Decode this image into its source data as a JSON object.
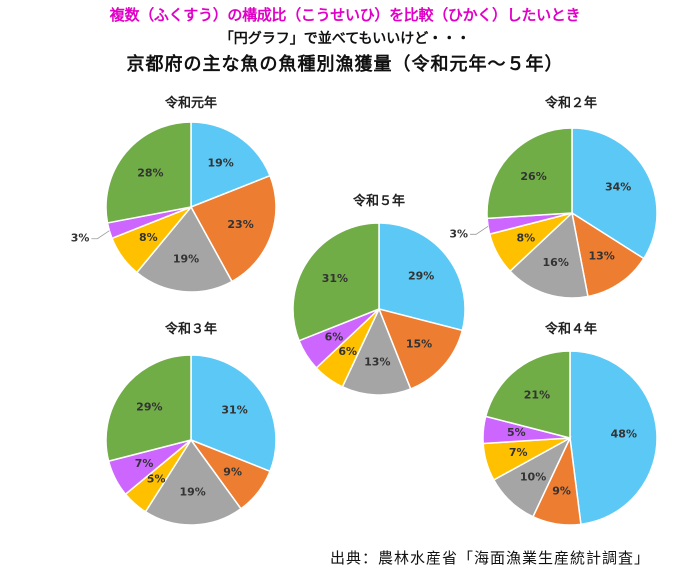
{
  "headline": "複数（ふくすう）の構成比（こうせいひ）を比較（ひかく）したいとき",
  "subheadline": "「円グラフ」で並べてもいいけど・・・",
  "title": "京都府の主な魚の魚種別漁獲量（令和元年～５年）",
  "source": "出典：農林水産省「海面漁業生産統計調査」",
  "colors": [
    "#5bc8f5",
    "#ed7d31",
    "#a5a5a5",
    "#ffc000",
    "#cc66ff",
    "#70ad47"
  ],
  "chart_data": [
    {
      "type": "pie",
      "title": "令和元年",
      "labels": [
        "19%",
        "23%",
        "19%",
        "8%",
        "3%",
        "28%"
      ],
      "values": [
        19,
        23,
        19,
        8,
        3,
        28
      ]
    },
    {
      "type": "pie",
      "title": "令和２年",
      "labels": [
        "34%",
        "13%",
        "16%",
        "8%",
        "3%",
        "26%"
      ],
      "values": [
        34,
        13,
        16,
        8,
        3,
        26
      ]
    },
    {
      "type": "pie",
      "title": "令和５年",
      "labels": [
        "29%",
        "15%",
        "13%",
        "6%",
        "6%",
        "31%"
      ],
      "values": [
        29,
        15,
        13,
        6,
        6,
        31
      ]
    },
    {
      "type": "pie",
      "title": "令和３年",
      "labels": [
        "31%",
        "9%",
        "19%",
        "5%",
        "7%",
        "29%"
      ],
      "values": [
        31,
        9,
        19,
        5,
        7,
        29
      ]
    },
    {
      "type": "pie",
      "title": "令和４年",
      "labels": [
        "48%",
        "9%",
        "10%",
        "7%",
        "5%",
        "21%"
      ],
      "values": [
        48,
        9,
        10,
        7,
        5,
        21
      ]
    }
  ]
}
